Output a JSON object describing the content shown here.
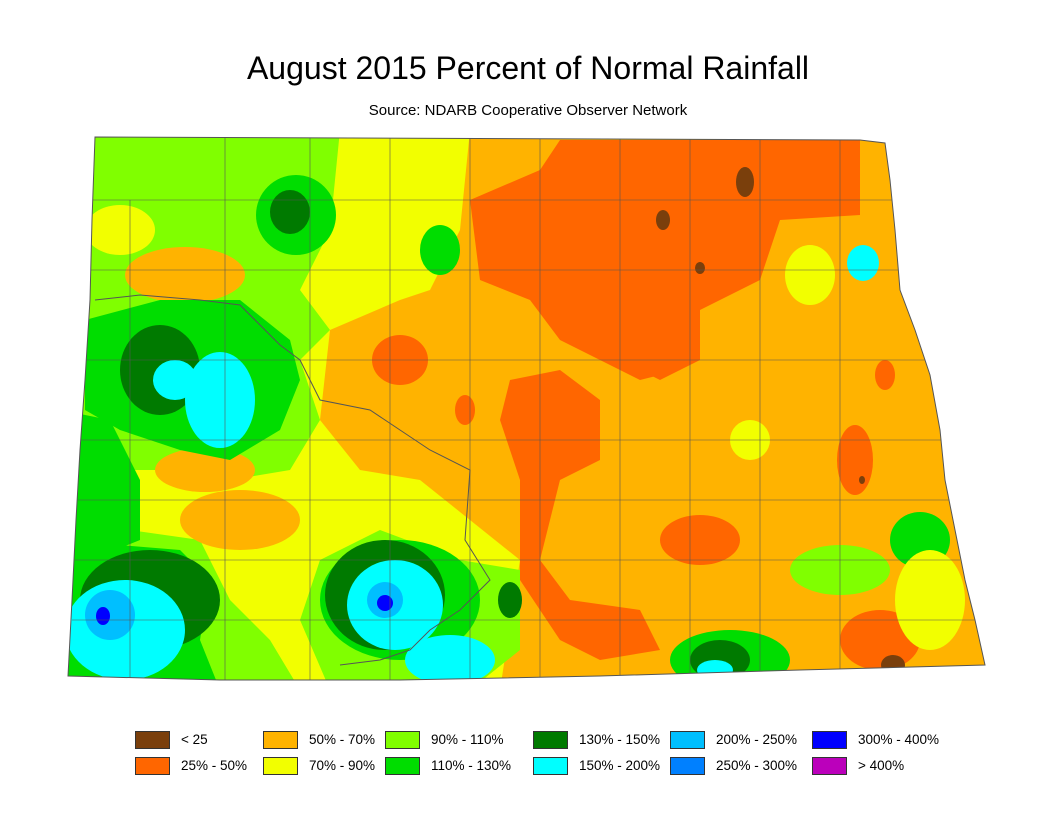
{
  "title": "August 2015 Percent of Normal Rainfall",
  "subtitle": "Source: NDARB Cooperative Observer Network",
  "legend": [
    {
      "label": "< 25",
      "color": "#7a3f0c"
    },
    {
      "label": "25% - 50%",
      "color": "#ff6600"
    },
    {
      "label": "50% - 70%",
      "color": "#ffb300"
    },
    {
      "label": "70% - 90%",
      "color": "#f2ff00"
    },
    {
      "label": "90% - 110%",
      "color": "#80ff00"
    },
    {
      "label": "110% - 130%",
      "color": "#00dd00"
    },
    {
      "label": "130% - 150%",
      "color": "#007a00"
    },
    {
      "label": "150% - 200%",
      "color": "#00ffff"
    },
    {
      "label": "200% - 250%",
      "color": "#00bfff"
    },
    {
      "label": "250% - 300%",
      "color": "#0080ff"
    },
    {
      "label": "300% - 400%",
      "color": "#0000ff"
    },
    {
      "label": "> 400%",
      "color": "#bb00bb"
    }
  ]
}
